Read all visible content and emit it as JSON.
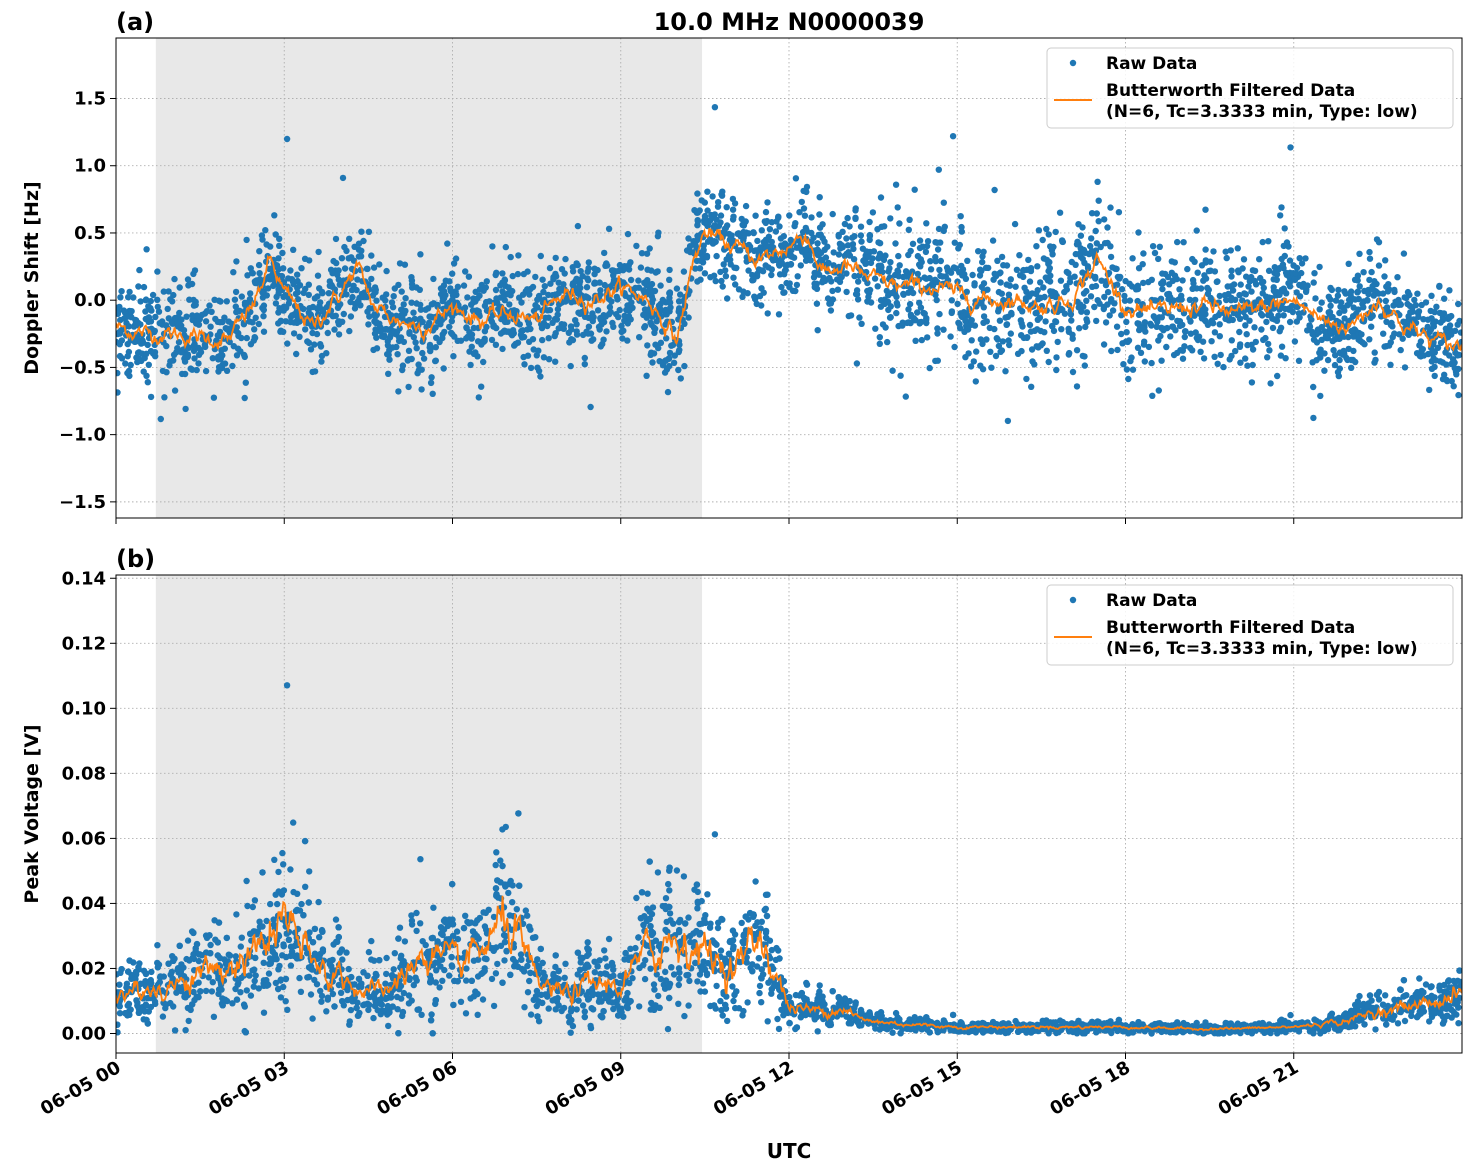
{
  "chart_data": [
    {
      "type": "scatter",
      "panel_label": "(a)",
      "title": "10.0 MHz N0000039",
      "xlabel": "",
      "ylabel": "Doppler Shift [Hz]",
      "xlim_hours": [
        0,
        24
      ],
      "ylim": [
        -1.62,
        1.95
      ],
      "yticks": [
        -1.5,
        -1.0,
        -0.5,
        0.0,
        0.5,
        1.0,
        1.5
      ],
      "ytick_labels": [
        "−1.5",
        "−1.0",
        "−0.5",
        "0.0",
        "0.5",
        "1.0",
        "1.5"
      ],
      "grid": true,
      "legend_placement": "top-right",
      "shaded_interval_hours": [
        0.71,
        10.45
      ],
      "series": [
        {
          "name": "Raw Data",
          "kind": "points",
          "color": "#1f77b4",
          "spread_hz_early": 0.33,
          "spread_hz_late": 0.45
        },
        {
          "name": "Butterworth Filtered Data\n(N=6, Tc=3.3333 min, Type: low)",
          "kind": "line",
          "color": "#ff7f0e",
          "x_hours": [
            0,
            0.5,
            1,
            1.5,
            2,
            2.5,
            2.75,
            3,
            3.5,
            4,
            4.3,
            4.6,
            5,
            5.5,
            6,
            6.5,
            7,
            7.5,
            8,
            8.5,
            9,
            9.5,
            10,
            10.3,
            10.5,
            11,
            11.5,
            12,
            12.3,
            12.6,
            13,
            13.5,
            14,
            14.5,
            15,
            15.5,
            16,
            16.5,
            17,
            17.5,
            18,
            18.5,
            19,
            19.5,
            20,
            20.5,
            21,
            21.5,
            22,
            22.5,
            23,
            23.5,
            24
          ],
          "y": [
            -0.2,
            -0.25,
            -0.25,
            -0.28,
            -0.3,
            0.0,
            0.3,
            0.05,
            -0.2,
            0.05,
            0.25,
            -0.05,
            -0.15,
            -0.2,
            -0.05,
            -0.15,
            -0.1,
            -0.15,
            0.05,
            0.0,
            0.1,
            0.0,
            -0.3,
            0.3,
            0.5,
            0.4,
            0.3,
            0.4,
            0.5,
            0.2,
            0.25,
            0.15,
            0.1,
            0.1,
            0.05,
            0.0,
            0.0,
            -0.05,
            0.0,
            0.3,
            -0.05,
            -0.1,
            -0.05,
            -0.05,
            -0.1,
            -0.05,
            0.0,
            -0.15,
            -0.2,
            0.0,
            -0.2,
            -0.3,
            -0.35
          ]
        }
      ]
    },
    {
      "type": "scatter",
      "panel_label": "(b)",
      "xlabel": "UTC",
      "ylabel": "Peak Voltage [V]",
      "xlim_hours": [
        0,
        24
      ],
      "ylim": [
        -0.006,
        0.141
      ],
      "yticks": [
        0.0,
        0.02,
        0.04,
        0.06,
        0.08,
        0.1,
        0.12,
        0.14
      ],
      "ytick_labels": [
        "0.00",
        "0.02",
        "0.04",
        "0.06",
        "0.08",
        "0.10",
        "0.12",
        "0.14"
      ],
      "xticks_hours": [
        0,
        3,
        6,
        9,
        12,
        15,
        18,
        21
      ],
      "xtick_labels": [
        "06-05 00",
        "06-05 03",
        "06-05 06",
        "06-05 09",
        "06-05 12",
        "06-05 15",
        "06-05 18",
        "06-05 21"
      ],
      "grid": true,
      "legend_placement": "top-right",
      "shaded_interval_hours": [
        0.71,
        10.45
      ],
      "series": [
        {
          "name": "Raw Data",
          "kind": "points",
          "color": "#1f77b4",
          "spread_ratio": 0.6
        },
        {
          "name": "Butterworth Filtered Data\n(N=6, Tc=3.3333 min, Type: low)",
          "kind": "line",
          "color": "#ff7f0e",
          "x_hours": [
            0,
            0.5,
            1,
            1.5,
            2,
            2.5,
            3,
            3.5,
            4,
            4.5,
            5,
            5.5,
            6,
            6.5,
            7,
            7.5,
            8,
            8.5,
            9,
            9.5,
            10,
            10.5,
            11,
            11.5,
            12,
            12.5,
            13,
            13.3,
            14,
            15,
            16,
            17,
            18,
            19,
            20,
            21,
            21.5,
            22,
            22.5,
            23,
            23.5,
            24
          ],
          "y": [
            0.012,
            0.013,
            0.015,
            0.018,
            0.02,
            0.025,
            0.035,
            0.02,
            0.018,
            0.012,
            0.015,
            0.025,
            0.02,
            0.025,
            0.035,
            0.015,
            0.012,
            0.015,
            0.015,
            0.025,
            0.03,
            0.025,
            0.02,
            0.03,
            0.008,
            0.007,
            0.008,
            0.004,
            0.003,
            0.002,
            0.002,
            0.002,
            0.002,
            0.0015,
            0.0015,
            0.002,
            0.003,
            0.004,
            0.007,
            0.008,
            0.01,
            0.012
          ]
        }
      ]
    }
  ],
  "legend": {
    "raw": "Raw Data",
    "filtered_1": "Butterworth Filtered Data",
    "filtered_2": "(N=6, Tc=3.3333 min, Type: low)"
  }
}
